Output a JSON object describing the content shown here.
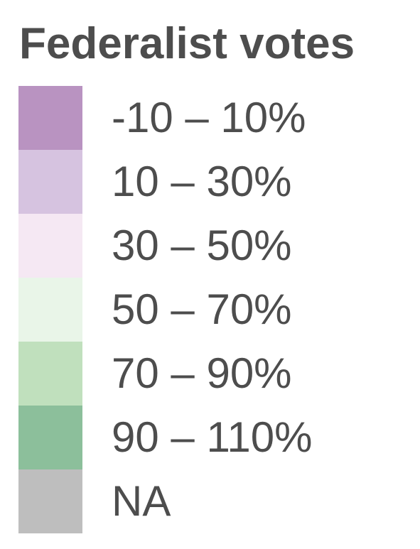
{
  "legend": {
    "title": "Federalist votes",
    "items": [
      {
        "label": "-10 – 10%",
        "color": "#b993c1"
      },
      {
        "label": "10 – 30%",
        "color": "#d6c3e0"
      },
      {
        "label": "30 – 50%",
        "color": "#f5e8f3"
      },
      {
        "label": "50 – 70%",
        "color": "#e9f5e8"
      },
      {
        "label": "70 – 90%",
        "color": "#c0e0bd"
      },
      {
        "label": "90 – 110%",
        "color": "#8cbf9b"
      },
      {
        "label": "NA",
        "color": "#bebebe"
      }
    ]
  }
}
